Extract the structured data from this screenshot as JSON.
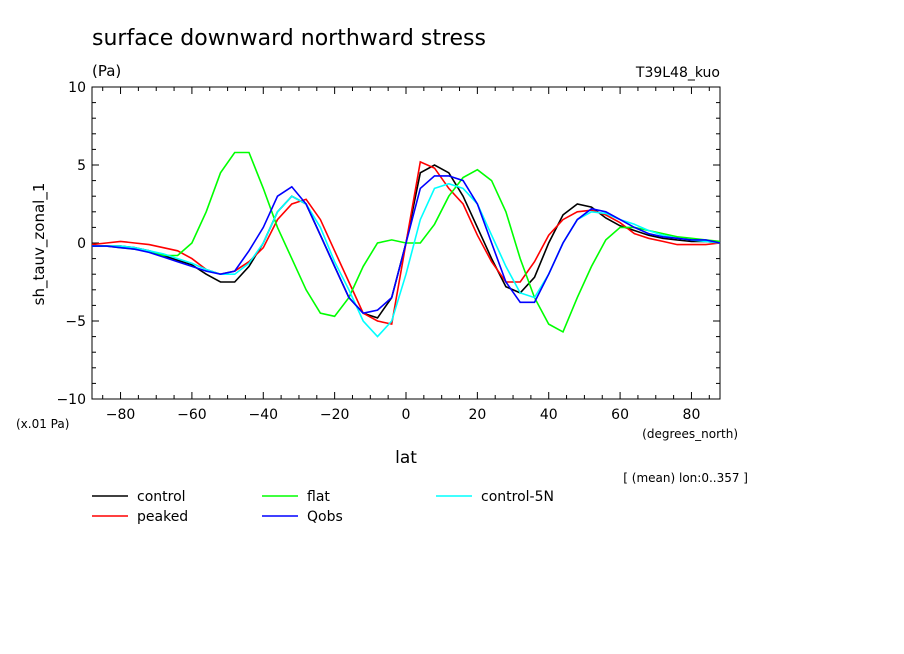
{
  "chart_data": {
    "type": "line",
    "title": "surface downward northward stress",
    "units_label": "(Pa)",
    "run_label": "T39L48_kuo",
    "ylabel": "sh_tauv_zonal_1",
    "xlabel": "lat",
    "scale_note": "(x.01 Pa)",
    "x_units": "(degrees_north)",
    "subset_note": "[ (mean) lon:0..357 ]",
    "xlim": [
      -88,
      88
    ],
    "ylim": [
      -10,
      10
    ],
    "x_ticks": [
      -80,
      -60,
      -40,
      -20,
      0,
      20,
      40,
      60,
      80
    ],
    "x_tick_labels": [
      "−80",
      "−60",
      "−40",
      "−20",
      "0",
      "20",
      "40",
      "60",
      "80"
    ],
    "y_ticks": [
      -10,
      -5,
      0,
      5,
      10
    ],
    "y_tick_labels": [
      "−10",
      "−5",
      "0",
      "5",
      "10"
    ],
    "grid": false,
    "legend_position": "bottom",
    "x": [
      -88,
      -84,
      -80,
      -76,
      -72,
      -68,
      -64,
      -60,
      -56,
      -52,
      -48,
      -44,
      -40,
      -36,
      -32,
      -28,
      -24,
      -20,
      -16,
      -12,
      -8,
      -4,
      0,
      4,
      8,
      12,
      16,
      20,
      24,
      28,
      32,
      36,
      40,
      44,
      48,
      52,
      56,
      60,
      64,
      68,
      72,
      76,
      80,
      84,
      88
    ],
    "series": [
      {
        "name": "control",
        "color": "#000000",
        "values": [
          -0.2,
          -0.2,
          -0.2,
          -0.3,
          -0.5,
          -0.8,
          -1.1,
          -1.4,
          -2.0,
          -2.5,
          -2.5,
          -1.5,
          0.0,
          2.0,
          3.0,
          2.5,
          0.5,
          -1.5,
          -3.5,
          -4.5,
          -4.8,
          -3.5,
          0.0,
          4.5,
          5.0,
          4.5,
          3.0,
          1.0,
          -1.0,
          -2.8,
          -3.2,
          -2.2,
          0.0,
          1.8,
          2.5,
          2.3,
          1.6,
          1.1,
          0.8,
          0.5,
          0.3,
          0.2,
          0.1,
          0.1,
          0.0
        ]
      },
      {
        "name": "peaked",
        "color": "#ff0000",
        "values": [
          -0.1,
          0.0,
          0.1,
          0.0,
          -0.1,
          -0.3,
          -0.5,
          -1.0,
          -1.7,
          -2.0,
          -1.8,
          -1.2,
          -0.3,
          1.5,
          2.5,
          2.8,
          1.5,
          -0.5,
          -2.5,
          -4.5,
          -5.0,
          -5.2,
          0.0,
          5.2,
          4.8,
          3.5,
          2.5,
          0.5,
          -1.2,
          -2.5,
          -2.5,
          -1.2,
          0.5,
          1.5,
          2.0,
          2.1,
          1.8,
          1.3,
          0.6,
          0.3,
          0.1,
          -0.1,
          -0.1,
          -0.1,
          0.0
        ]
      },
      {
        "name": "flat",
        "color": "#00ff00",
        "values": [
          -0.2,
          -0.2,
          -0.3,
          -0.4,
          -0.5,
          -0.8,
          -0.8,
          0.0,
          2.0,
          4.5,
          5.8,
          5.8,
          3.5,
          1.0,
          -1.0,
          -3.0,
          -4.5,
          -4.7,
          -3.5,
          -1.5,
          0.0,
          0.2,
          0.0,
          0.0,
          1.2,
          3.0,
          4.2,
          4.7,
          4.0,
          2.0,
          -1.0,
          -3.5,
          -5.2,
          -5.7,
          -3.5,
          -1.5,
          0.2,
          1.0,
          1.0,
          0.8,
          0.6,
          0.4,
          0.3,
          0.2,
          0.1
        ]
      },
      {
        "name": "control-5N",
        "color": "#00ffff",
        "values": [
          -0.2,
          -0.2,
          -0.2,
          -0.3,
          -0.5,
          -0.7,
          -1.0,
          -1.3,
          -1.7,
          -2.0,
          -2.0,
          -1.3,
          0.0,
          2.0,
          3.0,
          2.5,
          1.0,
          -1.2,
          -3.0,
          -5.0,
          -6.0,
          -5.0,
          -2.0,
          1.5,
          3.5,
          3.8,
          3.5,
          2.5,
          0.5,
          -1.5,
          -3.2,
          -3.5,
          -2.0,
          0.0,
          1.5,
          2.0,
          1.9,
          1.5,
          1.2,
          0.8,
          0.5,
          0.3,
          0.2,
          0.1,
          0.0
        ]
      },
      {
        "name": "Qobs",
        "color": "#0000ff",
        "values": [
          -0.2,
          -0.2,
          -0.3,
          -0.4,
          -0.6,
          -0.9,
          -1.2,
          -1.5,
          -1.8,
          -2.0,
          -1.8,
          -0.5,
          1.0,
          3.0,
          3.6,
          2.5,
          0.5,
          -1.5,
          -3.5,
          -4.5,
          -4.3,
          -3.5,
          0.0,
          3.5,
          4.3,
          4.3,
          4.0,
          2.5,
          0.0,
          -2.5,
          -3.8,
          -3.8,
          -2.0,
          0.0,
          1.5,
          2.2,
          2.0,
          1.5,
          1.0,
          0.6,
          0.4,
          0.3,
          0.2,
          0.2,
          0.0
        ]
      }
    ]
  }
}
